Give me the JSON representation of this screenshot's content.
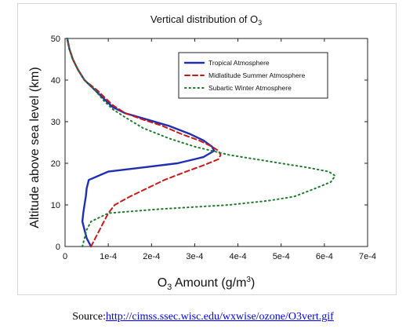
{
  "chart_data": {
    "type": "line",
    "title": "Vertical distribution of O",
    "title_subscript": "3",
    "xlabel": "O",
    "xlabel_sub": "3",
    "xlabel_rest": " Amount (g/m",
    "xlabel_sup": "3",
    "xlabel_end": ")",
    "ylabel": "Altitude above sea level (km)",
    "xlim": [
      0,
      0.0007
    ],
    "ylim": [
      0,
      50
    ],
    "x_ticks": [
      {
        "value": 0,
        "label": "0"
      },
      {
        "value": 0.0001,
        "label": "1e-4"
      },
      {
        "value": 0.0002,
        "label": "2e-4"
      },
      {
        "value": 0.0003,
        "label": "3e-4"
      },
      {
        "value": 0.0004,
        "label": "4e-4"
      },
      {
        "value": 0.0005,
        "label": "5e-4"
      },
      {
        "value": 0.0006,
        "label": "6e-4"
      },
      {
        "value": 0.0007,
        "label": "7e-4"
      }
    ],
    "y_ticks": [
      {
        "value": 0,
        "label": "0"
      },
      {
        "value": 10,
        "label": "10"
      },
      {
        "value": 20,
        "label": "20"
      },
      {
        "value": 30,
        "label": "30"
      },
      {
        "value": 40,
        "label": "40"
      },
      {
        "value": 50,
        "label": "50"
      }
    ],
    "grid": false,
    "legend_position": "top-right",
    "series": [
      {
        "name": "Tropical Atmosphere",
        "color": "#1f2fb0",
        "style": "solid",
        "points": [
          [
            6e-05,
            0
          ],
          [
            5e-05,
            2
          ],
          [
            4.5e-05,
            4
          ],
          [
            4e-05,
            6
          ],
          [
            4.2e-05,
            8
          ],
          [
            4.5e-05,
            10
          ],
          [
            4.8e-05,
            12
          ],
          [
            5e-05,
            14
          ],
          [
            5.5e-05,
            16
          ],
          [
            0.0001,
            18
          ],
          [
            0.00018,
            19
          ],
          [
            0.00026,
            20
          ],
          [
            0.00032,
            21.5
          ],
          [
            0.000345,
            23
          ],
          [
            0.00034,
            24
          ],
          [
            0.00032,
            25.5
          ],
          [
            0.00029,
            27
          ],
          [
            0.00024,
            29
          ],
          [
            0.00019,
            30.5
          ],
          [
            0.00014,
            32
          ],
          [
            0.00011,
            33.5
          ],
          [
            9.5e-05,
            35
          ],
          [
            7.5e-05,
            37
          ],
          [
            4.5e-05,
            40
          ],
          [
            3e-05,
            42.5
          ],
          [
            1.8e-05,
            45
          ],
          [
            1e-05,
            47.5
          ],
          [
            5e-06,
            50
          ]
        ]
      },
      {
        "name": "Midlatitude Summer Atmosphere",
        "color": "#c81a1a",
        "style": "dashed",
        "points": [
          [
            6e-05,
            0
          ],
          [
            7e-05,
            2
          ],
          [
            8e-05,
            4
          ],
          [
            9e-05,
            6
          ],
          [
            0.0001,
            8
          ],
          [
            0.000115,
            10
          ],
          [
            0.00015,
            12
          ],
          [
            0.00019,
            14
          ],
          [
            0.00023,
            16
          ],
          [
            0.00028,
            18
          ],
          [
            0.00032,
            19.5
          ],
          [
            0.000355,
            21
          ],
          [
            0.00036,
            22
          ],
          [
            0.000355,
            23
          ],
          [
            0.00034,
            24
          ],
          [
            0.00031,
            25.5
          ],
          [
            0.00027,
            27
          ],
          [
            0.000225,
            29
          ],
          [
            0.00018,
            30.5
          ],
          [
            0.00014,
            32
          ],
          [
            0.00011,
            34
          ],
          [
            9.5e-05,
            35.5
          ],
          [
            7.5e-05,
            37.5
          ],
          [
            4.5e-05,
            40
          ],
          [
            3e-05,
            42.5
          ],
          [
            1.8e-05,
            45
          ],
          [
            1e-05,
            47.5
          ],
          [
            5e-06,
            50
          ]
        ]
      },
      {
        "name": "Subartic Winter Atmosphere",
        "color": "#1e7a2c",
        "style": "dotted",
        "points": [
          [
            4e-05,
            0
          ],
          [
            4.5e-05,
            2
          ],
          [
            5e-05,
            4
          ],
          [
            6e-05,
            6
          ],
          [
            0.0001,
            8
          ],
          [
            0.00022,
            9
          ],
          [
            0.00038,
            10
          ],
          [
            0.00047,
            11
          ],
          [
            0.00053,
            12
          ],
          [
            0.00058,
            14
          ],
          [
            0.000615,
            15.5
          ],
          [
            0.000625,
            17
          ],
          [
            0.00061,
            18
          ],
          [
            0.00056,
            19
          ],
          [
            0.00047,
            20.5
          ],
          [
            0.00038,
            22
          ],
          [
            0.0003,
            24
          ],
          [
            0.00024,
            26
          ],
          [
            0.00018,
            28.5
          ],
          [
            0.00014,
            31
          ],
          [
            0.00011,
            33
          ],
          [
            9e-05,
            35
          ],
          [
            7e-05,
            37.5
          ],
          [
            4.5e-05,
            40
          ],
          [
            3e-05,
            42.5
          ],
          [
            1.8e-05,
            45
          ],
          [
            1e-05,
            47.5
          ],
          [
            5e-06,
            50
          ]
        ]
      }
    ]
  },
  "source": {
    "prefix": "Source:",
    "link_text": "http://cimss.ssec.wisc.edu/wxwise/ozone/O3vert.gif"
  }
}
